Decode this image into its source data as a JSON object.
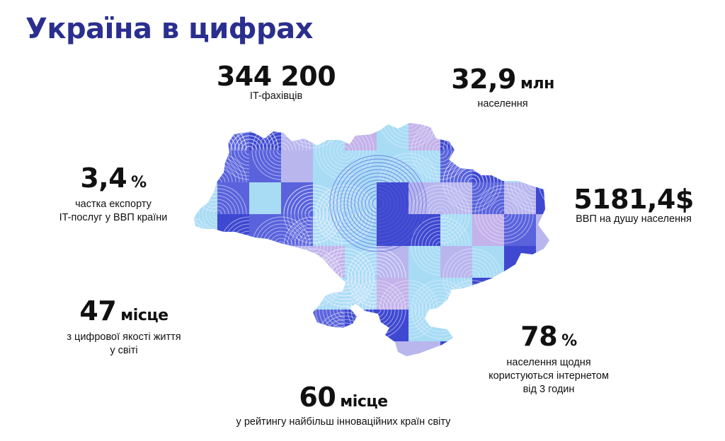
{
  "title": "Україна в цифрах",
  "colors": {
    "title": "#2a2f8f",
    "map_base": "#a8dcf5",
    "tile_dark": "#3e48d0",
    "tile_medium": "#5a63dc",
    "tile_light": "#b9b6ee",
    "tile_lavender": "#c4b2ea",
    "arc_line": "#eef2ff"
  },
  "stats": {
    "it_specialists": {
      "value": "344 200",
      "unit": "",
      "label": "IT-фахівців"
    },
    "population": {
      "value": "32,9",
      "unit": "млн",
      "label": "населення"
    },
    "it_export": {
      "value": "3,4",
      "unit": "%",
      "label_line1": "частка експорту",
      "label_line2": "IT-послуг у ВВП країни"
    },
    "gdp_per_capita": {
      "value": "5181,4$",
      "unit": "",
      "label": "ВВП на душу населення"
    },
    "digital_quality": {
      "value": "47",
      "unit": "місце",
      "label_line1": "з цифрової якості життя",
      "label_line2": "у світі"
    },
    "internet_usage": {
      "value": "78",
      "unit": "%",
      "label_line1": "населення щодня",
      "label_line2": "користуються інтернетом",
      "label_line3": "від 3 годин"
    },
    "innovation_rank": {
      "value": "60",
      "unit": "місце",
      "label": "у рейтингу найбільш інноваційних країн світу"
    }
  },
  "map": {
    "icon": "ukraine-map-icon"
  }
}
